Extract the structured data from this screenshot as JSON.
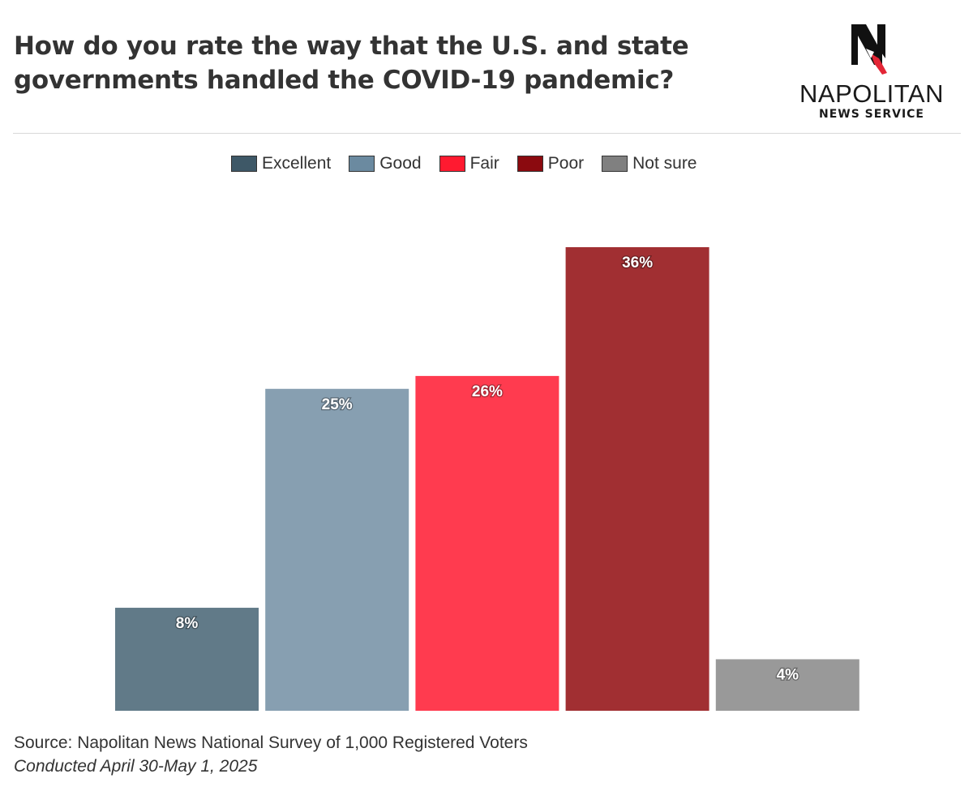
{
  "header": {
    "title_line1": "How do you rate the way that the U.S. and state",
    "title_line2": "governments handled the COVID-19 pandemic?"
  },
  "logo": {
    "name": "NAPOLITAN",
    "sub": "NEWS SERVICE"
  },
  "footer": {
    "source": "Source: Napolitan News National Survey of 1,000 Registered Voters",
    "conducted": "Conducted April 30-May 1, 2025"
  },
  "chart_data": {
    "type": "bar",
    "categories": [
      "Excellent",
      "Good",
      "Fair",
      "Poor",
      "Not sure"
    ],
    "values": [
      8,
      25,
      26,
      36,
      4
    ],
    "data_labels": [
      "8%",
      "25%",
      "26%",
      "36%",
      "4%"
    ],
    "colors": [
      "#617a88",
      "#879fb1",
      "#ff3b4f",
      "#a12f32",
      "#999999"
    ],
    "legend": {
      "placement": "top",
      "entries": [
        {
          "label": "Excellent",
          "color": "#3e5867"
        },
        {
          "label": "Good",
          "color": "#6b8aa0"
        },
        {
          "label": "Fair",
          "color": "#ff1a30"
        },
        {
          "label": "Poor",
          "color": "#8b0a0f"
        },
        {
          "label": "Not sure",
          "color": "#808080"
        }
      ]
    },
    "ylim": [
      0,
      36
    ],
    "grid": false
  }
}
